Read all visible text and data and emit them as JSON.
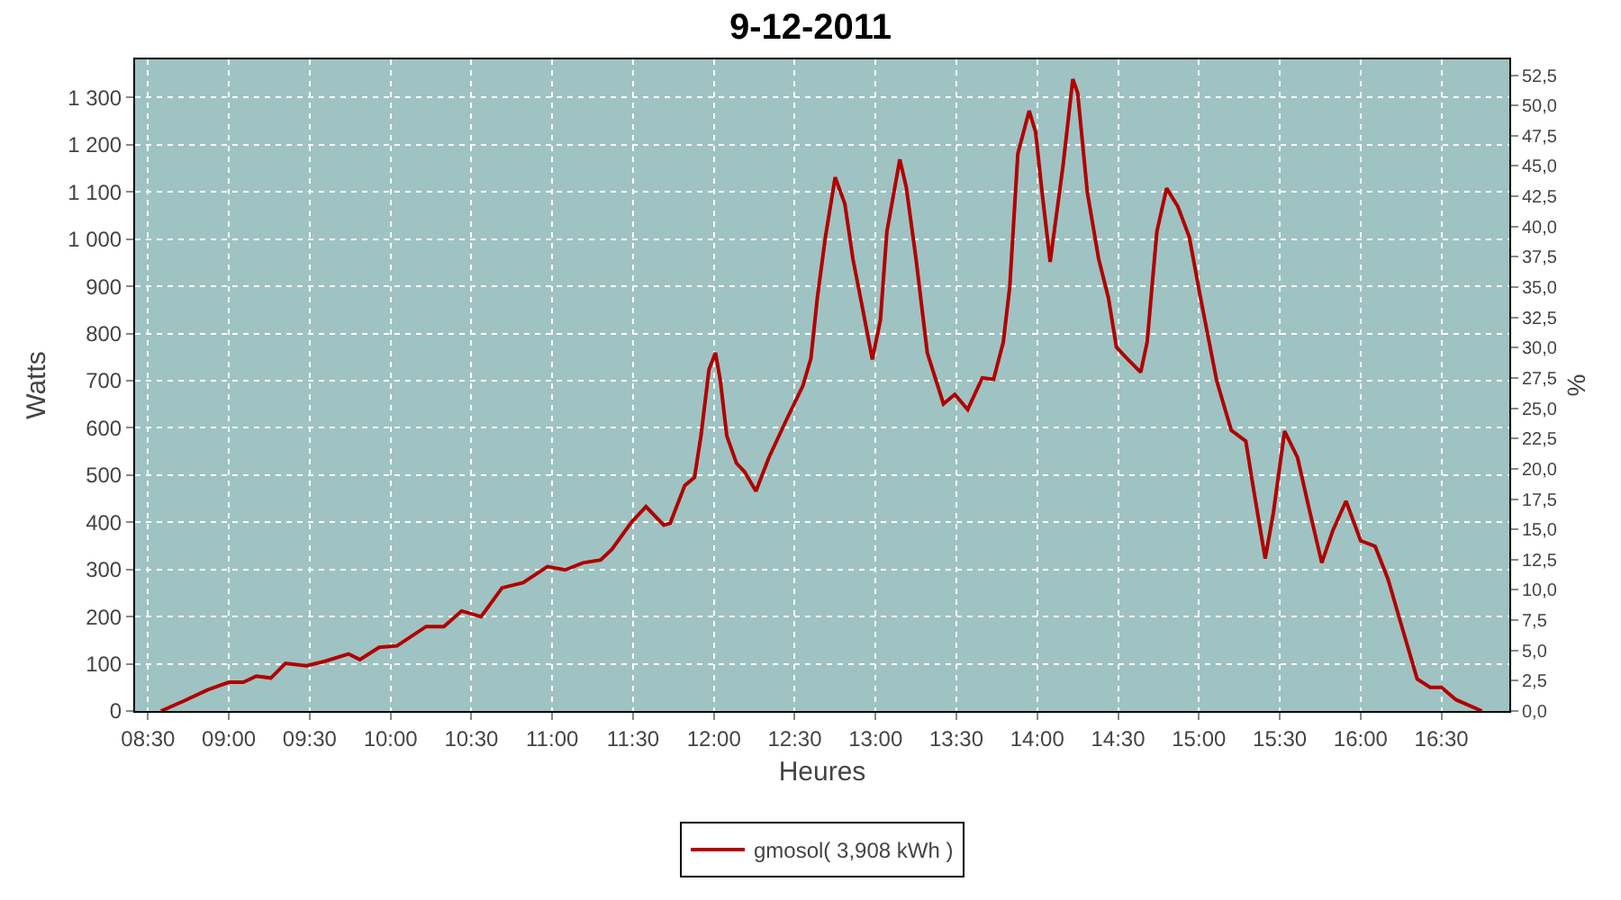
{
  "chart_data": {
    "type": "line",
    "title": "9-12-2011",
    "xlabel": "Heures",
    "ylabel": "Watts",
    "y2label": "%",
    "x": [
      8.58,
      8.72,
      8.87,
      9.0,
      9.09,
      9.17,
      9.26,
      9.35,
      9.48,
      9.59,
      9.74,
      9.81,
      9.93,
      10.04,
      10.22,
      10.33,
      10.44,
      10.56,
      10.69,
      10.82,
      10.97,
      11.08,
      11.19,
      11.3,
      11.37,
      11.49,
      11.58,
      11.69,
      11.73,
      11.82,
      11.88,
      11.92,
      11.97,
      12.01,
      12.04,
      12.08,
      12.14,
      12.19,
      12.26,
      12.34,
      12.45,
      12.55,
      12.6,
      12.64,
      12.69,
      12.75,
      12.81,
      12.86,
      12.92,
      12.98,
      13.03,
      13.07,
      13.15,
      13.19,
      13.25,
      13.32,
      13.42,
      13.49,
      13.57,
      13.66,
      13.73,
      13.79,
      13.83,
      13.88,
      13.95,
      13.99,
      14.03,
      14.08,
      14.16,
      14.22,
      14.25,
      14.31,
      14.38,
      14.44,
      14.49,
      14.55,
      14.64,
      14.68,
      14.74,
      14.8,
      14.87,
      14.94,
      15.01,
      15.11,
      15.2,
      15.29,
      15.34,
      15.41,
      15.46,
      15.53,
      15.61,
      15.68,
      15.76,
      15.83,
      15.91,
      16.0,
      16.09,
      16.17,
      16.26,
      16.35,
      16.43,
      16.5,
      16.59,
      16.75
    ],
    "series": [
      {
        "name": "gmosol( 3,908 kWh )",
        "color": "#b00000",
        "values": [
          0,
          21,
          45,
          61,
          61,
          74,
          70,
          101,
          96,
          105,
          121,
          109,
          135,
          138,
          179,
          179,
          212,
          200,
          261,
          272,
          306,
          299,
          314,
          320,
          343,
          400,
          433,
          394,
          398,
          478,
          495,
          583,
          724,
          759,
          700,
          583,
          525,
          507,
          466,
          537,
          618,
          689,
          747,
          876,
          1005,
          1131,
          1075,
          958,
          853,
          745,
          829,
          1016,
          1169,
          1110,
          959,
          759,
          651,
          671,
          639,
          706,
          703,
          782,
          899,
          1181,
          1272,
          1227,
          1099,
          952,
          1157,
          1339,
          1310,
          1099,
          958,
          876,
          771,
          749,
          718,
          782,
          1016,
          1108,
          1069,
          1005,
          876,
          700,
          595,
          572,
          466,
          323,
          419,
          593,
          537,
          431,
          314,
          384,
          445,
          361,
          349,
          279,
          173,
          68,
          50,
          50,
          24,
          0
        ]
      }
    ],
    "xlim": [
      8.42,
      16.92
    ],
    "xticks": [
      {
        "value": 8.5,
        "label": "08:30"
      },
      {
        "value": 9,
        "label": "09:00"
      },
      {
        "value": 9.5,
        "label": "09:30"
      },
      {
        "value": 10,
        "label": "10:00"
      },
      {
        "value": 10.5,
        "label": "10:30"
      },
      {
        "value": 11,
        "label": "11:00"
      },
      {
        "value": 11.5,
        "label": "11:30"
      },
      {
        "value": 12,
        "label": "12:00"
      },
      {
        "value": 12.5,
        "label": "12:30"
      },
      {
        "value": 13,
        "label": "13:00"
      },
      {
        "value": 13.5,
        "label": "13:30"
      },
      {
        "value": 14,
        "label": "14:00"
      },
      {
        "value": 14.5,
        "label": "14:30"
      },
      {
        "value": 15,
        "label": "15:00"
      },
      {
        "value": 15.5,
        "label": "15:30"
      },
      {
        "value": 16,
        "label": "16:00"
      },
      {
        "value": 16.5,
        "label": "16:30"
      }
    ],
    "ylim": [
      0,
      1381
    ],
    "yticks": [
      0,
      100,
      200,
      300,
      400,
      500,
      600,
      700,
      800,
      900,
      {
        "value": 1000,
        "label": "1 000"
      },
      {
        "value": 1100,
        "label": "1 100"
      },
      {
        "value": 1200,
        "label": "1 200"
      },
      {
        "value": 1300,
        "label": "1 300"
      }
    ],
    "y2lim": [
      0,
      53.8
    ],
    "y2ticks": [
      {
        "value": 0,
        "label": "0,0"
      },
      {
        "value": 2.5,
        "label": "2,5"
      },
      {
        "value": 5,
        "label": "5,0"
      },
      {
        "value": 7.5,
        "label": "7,5"
      },
      {
        "value": 10,
        "label": "10,0"
      },
      {
        "value": 12.5,
        "label": "12,5"
      },
      {
        "value": 15,
        "label": "15,0"
      },
      {
        "value": 17.5,
        "label": "17,5"
      },
      {
        "value": 20,
        "label": "20,0"
      },
      {
        "value": 22.5,
        "label": "22,5"
      },
      {
        "value": 25,
        "label": "25,0"
      },
      {
        "value": 27.5,
        "label": "27,5"
      },
      {
        "value": 30,
        "label": "30,0"
      },
      {
        "value": 32.5,
        "label": "32,5"
      },
      {
        "value": 35,
        "label": "35,0"
      },
      {
        "value": 37.5,
        "label": "37,5"
      },
      {
        "value": 40,
        "label": "40,0"
      },
      {
        "value": 42.5,
        "label": "42,5"
      },
      {
        "value": 45,
        "label": "45,0"
      },
      {
        "value": 47.5,
        "label": "47,5"
      },
      {
        "value": 50,
        "label": "50,0"
      },
      {
        "value": 52.5,
        "label": "52,5"
      }
    ],
    "grid": true,
    "legend": "bottom",
    "marker": "none",
    "line_style": "solid"
  }
}
